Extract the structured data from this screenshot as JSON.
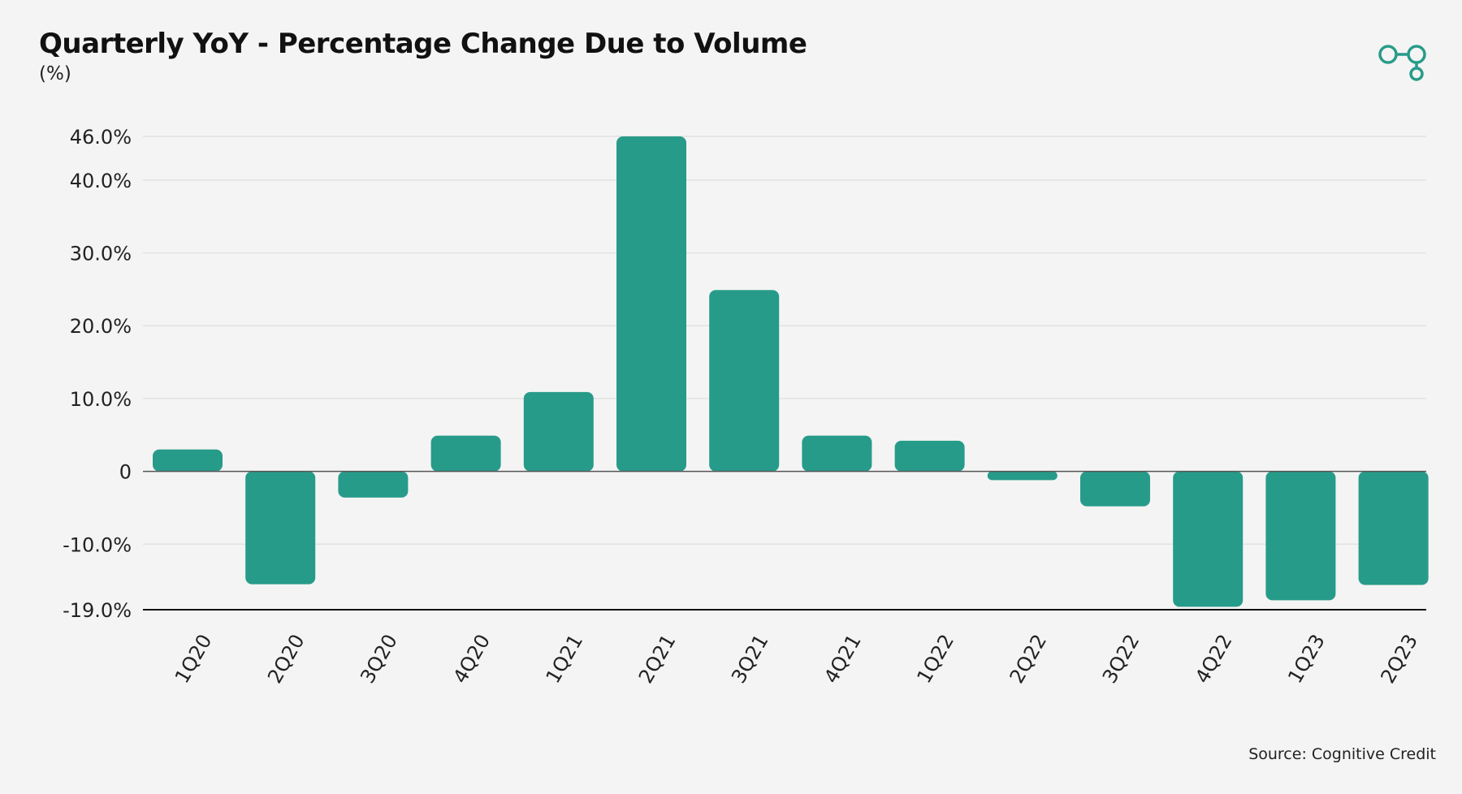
{
  "header": {
    "title": "Quarterly YoY - Percentage Change Due to Volume",
    "subtitle": "(%)"
  },
  "footer": {
    "source": "Source: Cognitive Credit"
  },
  "logo": {
    "icon": "linked-circles-logo-icon",
    "color": "#279b89"
  },
  "colors": {
    "bar": "#279b89",
    "grid": "#e2e2e2",
    "zero_line": "#555555",
    "bottom_axis": "#111111",
    "background": "#f4f4f4"
  },
  "chart_data": {
    "type": "bar",
    "title": "Quarterly YoY - Percentage Change Due to Volume",
    "subtitle": "(%)",
    "categories": [
      "1Q20",
      "2Q20",
      "3Q20",
      "4Q20",
      "1Q21",
      "2Q21",
      "3Q21",
      "4Q21",
      "1Q22",
      "2Q22",
      "3Q22",
      "4Q22",
      "1Q23",
      "2Q23"
    ],
    "values": [
      3.0,
      -15.5,
      -3.6,
      4.9,
      10.9,
      46.0,
      24.9,
      4.9,
      4.2,
      -1.2,
      -4.8,
      -18.6,
      -17.7,
      -15.6
    ],
    "ylim": [
      -19,
      46
    ],
    "yticks": [
      {
        "value": 46,
        "label": "46.0%"
      },
      {
        "value": 40,
        "label": "40.0%"
      },
      {
        "value": 30,
        "label": "30.0%"
      },
      {
        "value": 20,
        "label": "20.0%"
      },
      {
        "value": 10,
        "label": "10.0%"
      },
      {
        "value": 0,
        "label": "0"
      },
      {
        "value": -10,
        "label": "-10.0%"
      },
      {
        "value": -19,
        "label": "-19.0%"
      }
    ],
    "grid": true,
    "legend": "none"
  }
}
